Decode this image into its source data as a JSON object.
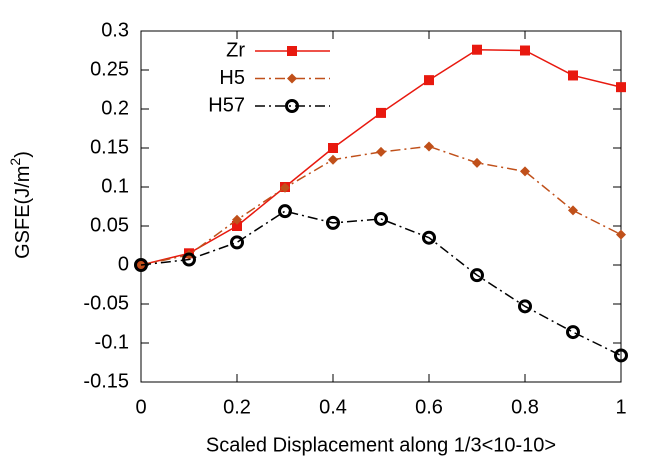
{
  "chart_data": {
    "type": "line",
    "x_label": "Scaled Displacement along 1/3<10-10>",
    "y_label": [
      "GSFE(J/m",
      "2",
      ")"
    ],
    "x": [
      0,
      0.1,
      0.2,
      0.3,
      0.4,
      0.5,
      0.6,
      0.7,
      0.8,
      0.9,
      1
    ],
    "series": [
      {
        "name": "Zr",
        "color": "#e8190f",
        "dash": "solid",
        "marker": "square",
        "values": [
          0,
          0.015,
          0.05,
          0.1,
          0.15,
          0.195,
          0.237,
          0.276,
          0.275,
          0.243,
          0.228
        ]
      },
      {
        "name": "H5",
        "color": "#c0501a",
        "dash": "dash-dot",
        "marker": "diamond",
        "values": [
          0,
          0.013,
          0.058,
          0.099,
          0.135,
          0.145,
          0.152,
          0.131,
          0.12,
          0.07,
          0.039
        ]
      },
      {
        "name": "H57",
        "color": "#000000",
        "dash": "dash-dot",
        "marker": "circle",
        "values": [
          0,
          0.007,
          0.029,
          0.069,
          0.054,
          0.059,
          0.035,
          -0.013,
          -0.053,
          -0.086,
          -0.116
        ]
      }
    ],
    "xlim": [
      0,
      1
    ],
    "xticks": [
      0,
      0.2,
      0.4,
      0.6,
      0.8,
      1
    ],
    "ylim": [
      -0.15,
      0.3
    ],
    "yticks": [
      -0.15,
      -0.1,
      -0.05,
      0,
      0.05,
      0.1,
      0.15,
      0.2,
      0.25,
      0.3
    ],
    "grid": false,
    "legend": "top-left"
  }
}
